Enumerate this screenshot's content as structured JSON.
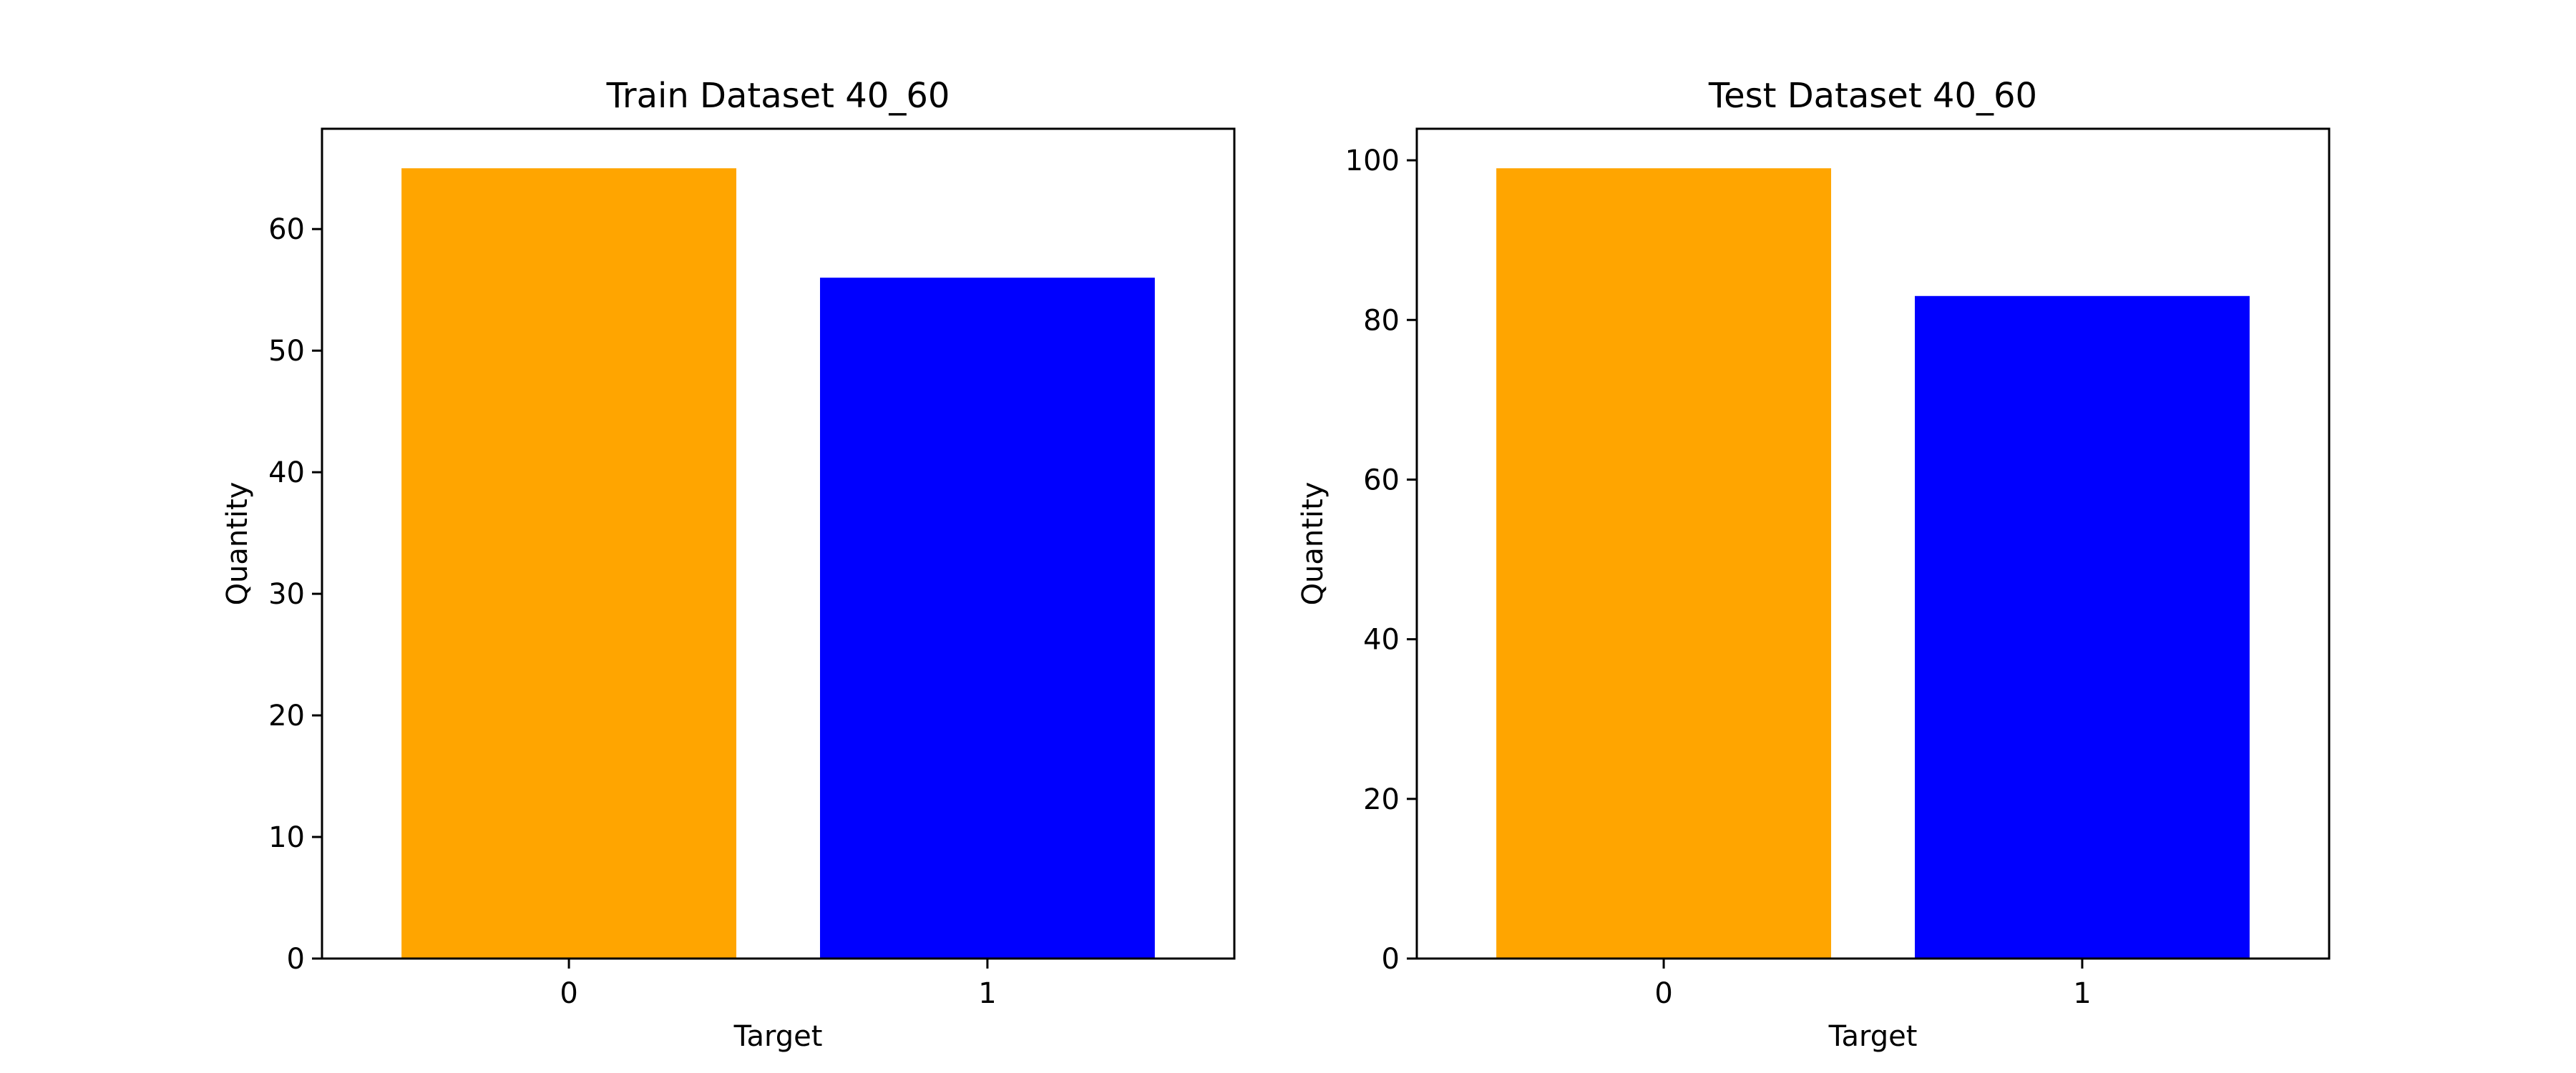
{
  "chart_data": [
    {
      "type": "bar",
      "title": "Train Dataset 40_60",
      "xlabel": "Target",
      "ylabel": "Quantity",
      "categories": [
        "0",
        "1"
      ],
      "values": [
        65,
        56
      ],
      "colors": [
        "#FFA500",
        "#0000FF"
      ],
      "ylim": [
        0,
        68.25
      ],
      "yticks": [
        0,
        10,
        20,
        30,
        40,
        50,
        60
      ],
      "grid": false,
      "legend": "none"
    },
    {
      "type": "bar",
      "title": "Test Dataset 40_60",
      "xlabel": "Target",
      "ylabel": "Quantity",
      "categories": [
        "0",
        "1"
      ],
      "values": [
        99,
        83
      ],
      "colors": [
        "#FFA500",
        "#0000FF"
      ],
      "ylim": [
        0,
        103.95
      ],
      "yticks": [
        0,
        20,
        40,
        60,
        80,
        100
      ],
      "grid": false,
      "legend": "none"
    }
  ]
}
